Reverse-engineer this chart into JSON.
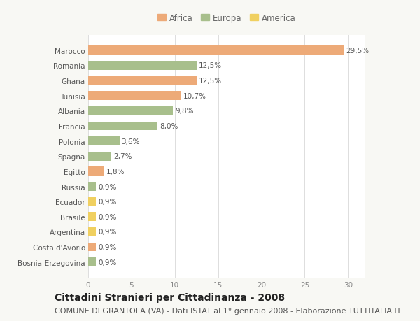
{
  "countries": [
    "Marocco",
    "Romania",
    "Ghana",
    "Tunisia",
    "Albania",
    "Francia",
    "Polonia",
    "Spagna",
    "Egitto",
    "Russia",
    "Ecuador",
    "Brasile",
    "Argentina",
    "Costa d'Avorio",
    "Bosnia-Erzegovina"
  ],
  "values": [
    29.5,
    12.5,
    12.5,
    10.7,
    9.8,
    8.0,
    3.6,
    2.7,
    1.8,
    0.9,
    0.9,
    0.9,
    0.9,
    0.9,
    0.9
  ],
  "labels": [
    "29,5%",
    "12,5%",
    "12,5%",
    "10,7%",
    "9,8%",
    "8,0%",
    "3,6%",
    "2,7%",
    "1,8%",
    "0,9%",
    "0,9%",
    "0,9%",
    "0,9%",
    "0,9%",
    "0,9%"
  ],
  "continents": [
    "Africa",
    "Europa",
    "Africa",
    "Africa",
    "Europa",
    "Europa",
    "Europa",
    "Europa",
    "Africa",
    "Europa",
    "America",
    "America",
    "America",
    "Africa",
    "Europa"
  ],
  "colors": {
    "Africa": "#EDAA78",
    "Europa": "#A8BF8C",
    "America": "#F0D060"
  },
  "xlim": [
    0,
    32
  ],
  "xticks": [
    0,
    5,
    10,
    15,
    20,
    25,
    30
  ],
  "title": "Cittadini Stranieri per Cittadinanza - 2008",
  "subtitle": "COMUNE DI GRANTOLA (VA) - Dati ISTAT al 1° gennaio 2008 - Elaborazione TUTTITALIA.IT",
  "background_color": "#f8f8f4",
  "plot_bg_color": "#ffffff",
  "bar_height": 0.6,
  "title_fontsize": 10,
  "subtitle_fontsize": 8,
  "label_fontsize": 7.5,
  "ytick_fontsize": 7.5,
  "xtick_fontsize": 7.5,
  "legend_fontsize": 8.5
}
